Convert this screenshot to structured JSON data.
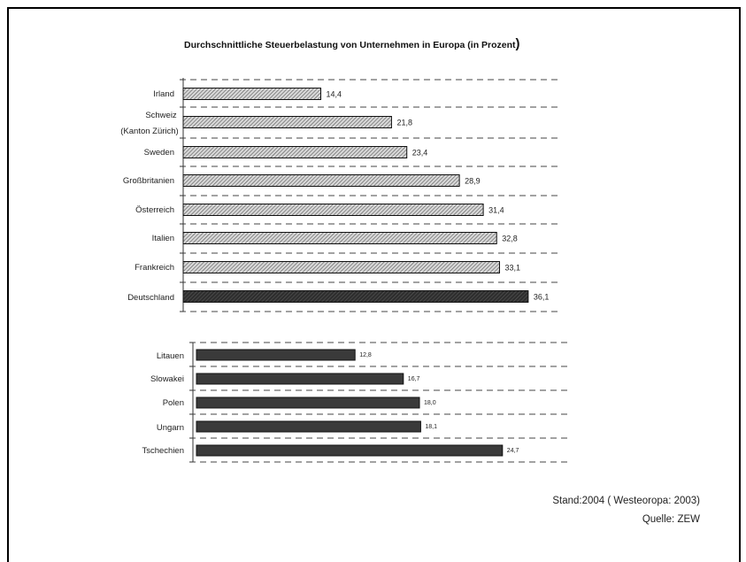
{
  "chart_data": [
    {
      "type": "bar",
      "orientation": "horizontal",
      "title": "Durchschnittliche Steuerbelastung von Unternehmen in Europa (in Prozent)",
      "categories": [
        "Irland",
        "Schweiz (Kanton Zürich)",
        "Sweden",
        "Großbritanien",
        "Österreich",
        "Italien",
        "Frankreich",
        "Deutschland"
      ],
      "values": [
        14.4,
        21.8,
        23.4,
        28.9,
        31.4,
        32.8,
        33.1,
        36.1
      ],
      "value_labels": [
        "14,4",
        "21,8",
        "23,4",
        "28,9",
        "31,4",
        "32,8",
        "33,1",
        "36,1"
      ],
      "highlight": "Deutschland",
      "colors": {
        "bar_fill": "#cfcfcf",
        "hatch": "#555555",
        "highlight_fill": "#3a3a3a"
      },
      "grid": "dashed horizontal"
    },
    {
      "type": "bar",
      "orientation": "horizontal",
      "categories": [
        "Litauen",
        "Slowakei",
        "Polen",
        "Ungarn",
        "Tschechien"
      ],
      "values": [
        12.8,
        16.7,
        18.0,
        18.1,
        24.7
      ],
      "value_labels": [
        "12,8",
        "16,7",
        "18,0",
        "18,1",
        "24,7"
      ],
      "colors": {
        "bar_fill": "#3a3a3a"
      },
      "grid": "dashed horizontal"
    }
  ],
  "title": {
    "main": "Durchschnittliche Steuerbelastung von Unternehmen in Europa (in Prozent",
    "paren": ")"
  },
  "labels": {
    "irland": "Irland",
    "schweiz_1": "Schweiz",
    "schweiz_2": "(Kanton Zürich)",
    "sweden": "Sweden",
    "gb": "Großbritanien",
    "oesterreich": "Österreich",
    "italien": "Italien",
    "frankreich": "Frankreich",
    "deutschland": "Deutschland",
    "litauen": "Litauen",
    "slowakei": "Slowakei",
    "polen": "Polen",
    "ungarn": "Ungarn",
    "tschechien": "Tschechien"
  },
  "notes": {
    "stand": "Stand:2004 ( Westeoropa: 2003)",
    "quelle": "Quelle: ZEW"
  }
}
